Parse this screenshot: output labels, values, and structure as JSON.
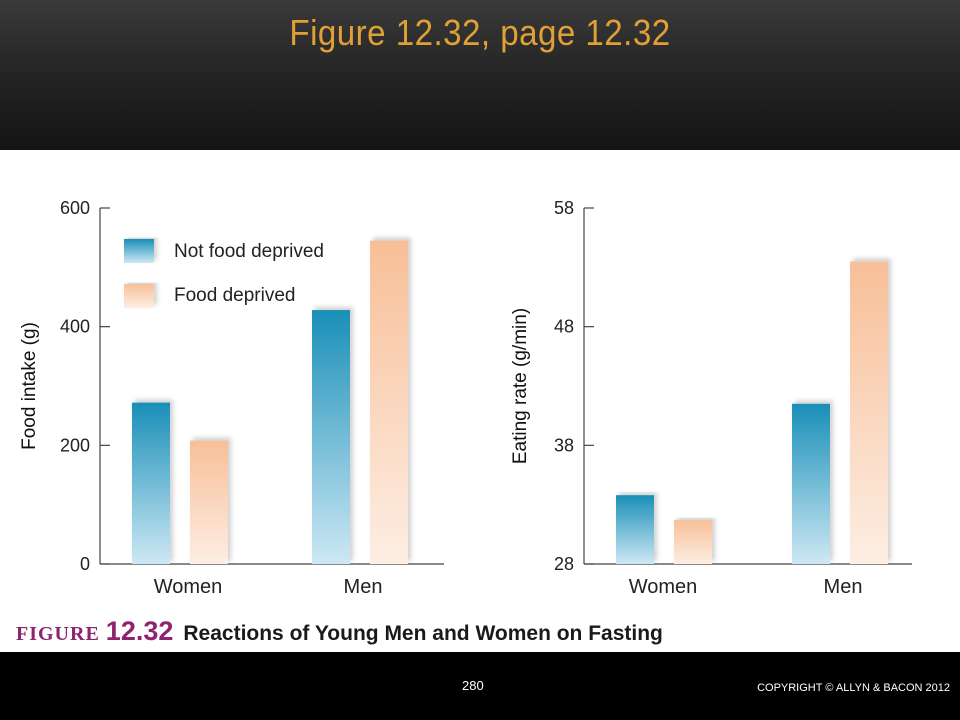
{
  "slide": {
    "title": "Figure 12.32, page 12.32",
    "page_number": "280",
    "copyright": "COPYRIGHT © ALLYN & BACON 2012"
  },
  "caption": {
    "figure_word": "FIGURE",
    "figure_number": "12.32",
    "text": "Reactions of Young Men and Women on Fasting"
  },
  "colors": {
    "not_deprived_top": "#1a8fb8",
    "not_deprived_bottom": "#cde8f4",
    "deprived_top": "#f8bf98",
    "deprived_bottom": "#fdeee3"
  },
  "chart_data": [
    {
      "type": "bar",
      "categories": [
        "Women",
        "Men"
      ],
      "series": [
        {
          "name": "Not food deprived",
          "values": [
            272,
            428
          ]
        },
        {
          "name": "Food deprived",
          "values": [
            208,
            545
          ]
        }
      ],
      "title": "",
      "xlabel": "",
      "ylabel": "Food intake (g)",
      "ylim": [
        0,
        600
      ],
      "yticks": [
        0,
        200,
        400,
        600
      ],
      "grid": false,
      "legend": "top-left"
    },
    {
      "type": "bar",
      "categories": [
        "Women",
        "Men"
      ],
      "series": [
        {
          "name": "Not food deprived",
          "values": [
            33.8,
            41.5
          ]
        },
        {
          "name": "Food deprived",
          "values": [
            31.7,
            53.5
          ]
        }
      ],
      "title": "",
      "xlabel": "",
      "ylabel": "Eating rate (g/min)",
      "ylim": [
        28,
        58
      ],
      "yticks": [
        28,
        38,
        48,
        58
      ],
      "grid": false,
      "legend": "none"
    }
  ]
}
